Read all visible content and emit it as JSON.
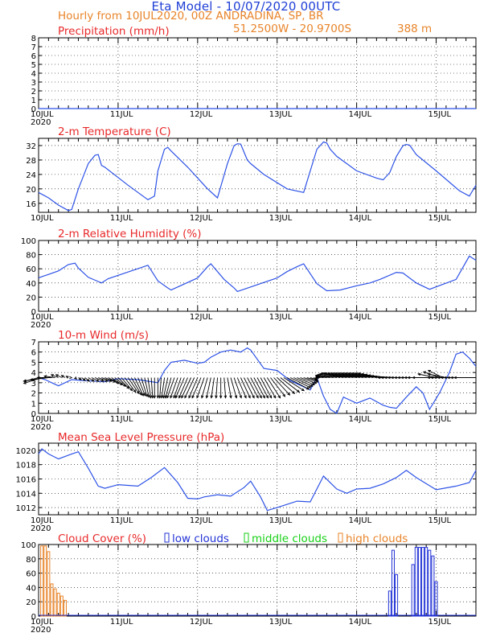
{
  "header": {
    "title": "Eta Model - 10/07/2020 00UTC",
    "subtitle": "Hourly from 10JUL2020, 00Z  ANDRADINA, SP, BR",
    "coords": "51.2500W - 20.9700S",
    "elevation": "388  m"
  },
  "colors": {
    "title": "#1f3fd6",
    "orange": "#e8842a",
    "red": "#e8292a",
    "series": "#2d52e6",
    "wind": "#000000",
    "low": "#2333d6",
    "mid": "#17d016",
    "high": "#e8842a"
  },
  "chart_data": [
    {
      "type": "line",
      "title": "Precipitation (mm/h)",
      "x_ticks": [
        "10JUL\n2020",
        "11JUL",
        "12JUL",
        "13JUL",
        "14JUL",
        "15JUL"
      ],
      "ylim": [
        0,
        8
      ],
      "yticks": [
        0,
        1,
        2,
        3,
        4,
        5,
        6,
        7,
        8
      ],
      "grid": true,
      "series": [
        {
          "name": "Precipitation",
          "x": [
            0,
            132
          ],
          "y": [
            0,
            0
          ]
        }
      ]
    },
    {
      "type": "line",
      "title": "2-m Temperature (C)",
      "x_ticks": [
        "10JUL",
        "11JUL",
        "12JUL",
        "13JUL",
        "14JUL",
        "15JUL"
      ],
      "ylim": [
        13.5,
        34
      ],
      "yticks": [
        16,
        20,
        24,
        28,
        32
      ],
      "grid": true,
      "series": [
        {
          "name": "Temperature",
          "x": [
            0,
            3,
            6,
            9,
            10,
            12,
            15,
            17,
            18,
            19,
            20,
            27,
            33,
            35,
            36,
            38,
            39,
            40,
            45,
            51,
            54,
            57,
            59,
            60,
            61,
            63,
            64,
            68,
            75,
            80,
            84,
            86,
            87,
            88,
            90,
            96,
            102,
            104,
            106,
            108,
            110,
            111,
            112,
            114,
            120,
            127,
            130,
            132
          ],
          "y": [
            19,
            17.5,
            15.5,
            14,
            14.3,
            20,
            27,
            29.3,
            29.5,
            26.5,
            26,
            21,
            17,
            18,
            25,
            31,
            31.5,
            30.5,
            26,
            20,
            17.5,
            27,
            32,
            32.5,
            32.4,
            28,
            27,
            24,
            20,
            19,
            31,
            33,
            32.7,
            31,
            29,
            25,
            23,
            22.5,
            24.5,
            29,
            32,
            32.3,
            32.1,
            29.5,
            25,
            19.5,
            18,
            21
          ]
        }
      ]
    },
    {
      "type": "line",
      "title": "2-m Relative Humidity (%)",
      "x_ticks": [
        "10JUL\n2020",
        "11JUL",
        "12JUL",
        "13JUL",
        "14JUL",
        "15JUL"
      ],
      "ylim": [
        0,
        100
      ],
      "yticks": [
        0,
        20,
        40,
        60,
        80,
        100
      ],
      "grid": true,
      "series": [
        {
          "name": "Relative Humidity",
          "x": [
            0,
            1,
            3,
            6,
            9,
            11,
            12,
            15,
            18,
            19,
            21,
            33,
            36,
            39,
            40,
            48,
            51,
            52,
            56,
            59,
            60,
            72,
            75,
            78,
            80,
            84,
            87,
            91,
            96,
            100,
            103,
            108,
            110,
            114,
            118,
            126,
            130,
            132
          ],
          "y": [
            47,
            49,
            52,
            57,
            66,
            68,
            61,
            48,
            42,
            40,
            46,
            65,
            43,
            33,
            30,
            47,
            63,
            67,
            45,
            33,
            28,
            47,
            56,
            63,
            67,
            39,
            29,
            30,
            36,
            40,
            45,
            55,
            54,
            40,
            31,
            45,
            78,
            72
          ]
        }
      ]
    },
    {
      "type": "line",
      "title": "10-m Wind (m/s)",
      "x_ticks": [
        "10JUL\n2020",
        "11JUL",
        "12JUL",
        "13JUL",
        "14JUL",
        "15JUL"
      ],
      "ylim": [
        0,
        7
      ],
      "yticks": [
        0,
        1,
        2,
        3,
        4,
        5,
        6,
        7
      ],
      "grid": true,
      "series": [
        {
          "name": "Wind speed",
          "x": [
            0,
            2,
            4,
            6,
            10,
            14,
            20,
            24,
            30,
            36,
            38,
            40,
            44,
            48,
            50,
            52,
            55,
            58,
            61,
            63,
            64,
            68,
            72,
            76,
            80,
            82,
            84,
            86,
            88,
            90,
            92,
            94,
            96,
            100,
            104,
            106,
            108,
            111,
            114,
            116,
            118,
            121,
            124,
            126,
            128,
            130,
            132
          ],
          "y": [
            3.5,
            3.3,
            3,
            2.7,
            3.3,
            3.2,
            3.1,
            3.4,
            3.3,
            3,
            4.2,
            5,
            5.2,
            4.9,
            5,
            5.5,
            6,
            6.2,
            6,
            6.4,
            6.2,
            4.4,
            4.2,
            3.2,
            2.6,
            2.3,
            3.5,
            1.7,
            0.4,
            0,
            1.6,
            1.3,
            1,
            1.5,
            0.8,
            0.6,
            0.5,
            1.6,
            2.6,
            2,
            0.4,
            2,
            4,
            5.8,
            6,
            5.4,
            4.6
          ]
        }
      ],
      "barbs": {
        "x": [
          0,
          1,
          2,
          3,
          4,
          5,
          6,
          7,
          8,
          9,
          10,
          11,
          12,
          13,
          14,
          15,
          16,
          17,
          18,
          19,
          20,
          21,
          22,
          23,
          24,
          25,
          26,
          27,
          28,
          29,
          30,
          31,
          32,
          33,
          34,
          35,
          36,
          37,
          38,
          39,
          40,
          41,
          42,
          43,
          44,
          45,
          46,
          47,
          48,
          49,
          50,
          51,
          52,
          53,
          54,
          55,
          56,
          57,
          58,
          59,
          60,
          61,
          62,
          63,
          64,
          65,
          66,
          67,
          68,
          69,
          70,
          71,
          72,
          73,
          74,
          75,
          76,
          77,
          78,
          79,
          80,
          81,
          82,
          83,
          84,
          85,
          86,
          87,
          88,
          89,
          90,
          91,
          92,
          93,
          94,
          95,
          96,
          97,
          98,
          99,
          100,
          101,
          102,
          103,
          104,
          105,
          106,
          107,
          108,
          109,
          110,
          111,
          112,
          113,
          114,
          115,
          116,
          117,
          118,
          119,
          120,
          121,
          122,
          123,
          124,
          125,
          126,
          127,
          128,
          129,
          130,
          131,
          132
        ],
        "u": [
          -2,
          -2.5,
          -3,
          -2.5,
          -2,
          -1.5,
          -1,
          -0.8,
          -0.5,
          -0.3,
          0,
          0.2,
          0.4,
          0.5,
          0.6,
          0.8,
          1,
          1.2,
          1.3,
          1.4,
          1.5,
          1.5,
          1.5,
          1.5,
          1.5,
          1.5,
          1.5,
          1.5,
          1.4,
          1.2,
          1,
          0.8,
          0.6,
          0.4,
          0.2,
          0,
          0,
          -0.2,
          -0.4,
          -0.6,
          -0.8,
          -1,
          -1,
          -1,
          -1.2,
          -1.2,
          -1.3,
          -1.3,
          -1.2,
          -1.2,
          -1,
          -0.8,
          -0.6,
          -0.4,
          -0.2,
          0,
          0.2,
          0.5,
          0.8,
          1,
          1.2,
          1.3,
          1.4,
          1.5,
          1.5,
          1.5,
          1.5,
          1.5,
          1.6,
          1.8,
          2,
          2.2,
          2.4,
          2.6,
          2.8,
          3,
          2.8,
          2.6,
          2.4,
          2.2,
          2,
          1.5,
          1,
          0.5,
          0,
          -0.5,
          -1,
          -1.5,
          -2,
          -2.2,
          -2.4,
          -2.6,
          -2.8,
          -3,
          -3,
          -3,
          -3,
          -3,
          -3,
          -3,
          -3,
          -3,
          -3,
          -3,
          -3,
          -3,
          -3,
          -3,
          -3,
          -3,
          -3,
          -3,
          -3,
          -3,
          -3,
          -3,
          -3,
          -3,
          -3,
          -2.8,
          -2.5,
          -2.2,
          -2,
          -2.5,
          -3,
          -3,
          -3,
          -3,
          -3,
          -3,
          -3,
          -3,
          -3
        ],
        "v": [
          -0.5,
          -0.8,
          -0.5,
          -0.3,
          0,
          0.2,
          0.4,
          0.4,
          0.3,
          0.2,
          0,
          -0.2,
          -0.3,
          -0.4,
          -0.5,
          -0.5,
          -0.5,
          -0.5,
          -0.5,
          -0.5,
          -0.6,
          -0.8,
          -1,
          -1.2,
          -1.5,
          -1.8,
          -2,
          -2.2,
          -2.4,
          -2.5,
          -2.5,
          -2.6,
          -2.7,
          -2.8,
          -2.8,
          -2.8,
          -2.8,
          -2.8,
          -2.8,
          -2.8,
          -2.8,
          -2.8,
          -2.8,
          -2.8,
          -2.8,
          -2.8,
          -2.8,
          -2.8,
          -2.8,
          -2.8,
          -2.8,
          -2.8,
          -2.8,
          -2.8,
          -2.8,
          -2.8,
          -2.8,
          -2.8,
          -2.8,
          -2.8,
          -2.8,
          -2.8,
          -2.8,
          -2.8,
          -2.8,
          -2.8,
          -2.8,
          -2.8,
          -2.8,
          -2.8,
          -2.6,
          -2.4,
          -2.2,
          -2,
          -1.8,
          -1.6,
          -1.4,
          -1.2,
          -1,
          -0.8,
          -0.6,
          -0.4,
          -0.3,
          -0.2,
          -0.1,
          0,
          0.1,
          0.2,
          0.3,
          0.4,
          0.5,
          0.6,
          0.6,
          0.6,
          0.6,
          0.6,
          0.6,
          0.6,
          0.6,
          0.6,
          0.6,
          0.6,
          0.6,
          0.6,
          0.5,
          0.4,
          0.3,
          0.2,
          0.1,
          0,
          0,
          0,
          0,
          0,
          0,
          0,
          0,
          0,
          0,
          0,
          0.5,
          0.8,
          1,
          0.5,
          0,
          0,
          0,
          0,
          0,
          0,
          0,
          0,
          0
        ]
      }
    },
    {
      "type": "line",
      "title": "Mean Sea Level Pressure (hPa)",
      "x_ticks": [
        "10JUL\n2020",
        "11JUL",
        "12JUL",
        "13JUL",
        "14JUL",
        "15JUL"
      ],
      "ylim": [
        1011,
        1021
      ],
      "yticks": [
        1012,
        1014,
        1016,
        1018,
        1020
      ],
      "grid": true,
      "series": [
        {
          "name": "Pressure",
          "x": [
            0,
            1,
            3,
            6,
            10,
            12,
            15,
            18,
            20,
            24,
            30,
            34,
            38,
            42,
            45,
            48,
            50,
            54,
            58,
            62,
            64,
            67,
            69,
            72,
            78,
            82,
            86,
            90,
            93,
            96,
            100,
            104,
            108,
            111,
            114,
            120,
            126,
            130,
            132
          ],
          "y": [
            1019.5,
            1020.2,
            1019.5,
            1018.8,
            1019.5,
            1019.8,
            1017.5,
            1015,
            1014.7,
            1015.2,
            1015,
            1016.2,
            1017.6,
            1015.5,
            1013.3,
            1013.2,
            1013.5,
            1013.8,
            1013.6,
            1014.8,
            1015.7,
            1013.5,
            1011.6,
            1012,
            1012.9,
            1012.8,
            1016.4,
            1014.6,
            1014,
            1014.6,
            1014.7,
            1015.3,
            1016.2,
            1017.2,
            1016.2,
            1014.5,
            1015,
            1015.5,
            1017.2
          ]
        }
      ]
    },
    {
      "type": "bar",
      "title": "Cloud Cover (%)",
      "legend": [
        "low clouds",
        "middle clouds",
        "high clouds"
      ],
      "x_ticks": [
        "10JUL\n2020",
        "11JUL",
        "12JUL",
        "13JUL",
        "14JUL",
        "15JUL"
      ],
      "ylim": [
        0,
        100
      ],
      "yticks": [
        0,
        20,
        40,
        60,
        80,
        100
      ],
      "grid": true,
      "series": [
        {
          "name": "low clouds",
          "x": [
            106,
            107,
            108,
            113,
            114,
            115,
            116,
            117,
            118,
            119,
            120
          ],
          "values": [
            35,
            92,
            58,
            72,
            96,
            96,
            96,
            96,
            92,
            84,
            48
          ]
        },
        {
          "name": "middle clouds",
          "x": [],
          "values": []
        },
        {
          "name": "high clouds",
          "x": [
            1,
            2,
            3,
            4,
            5,
            6,
            7,
            8
          ],
          "values": [
            98,
            98,
            90,
            45,
            38,
            32,
            28,
            22
          ]
        }
      ]
    }
  ]
}
